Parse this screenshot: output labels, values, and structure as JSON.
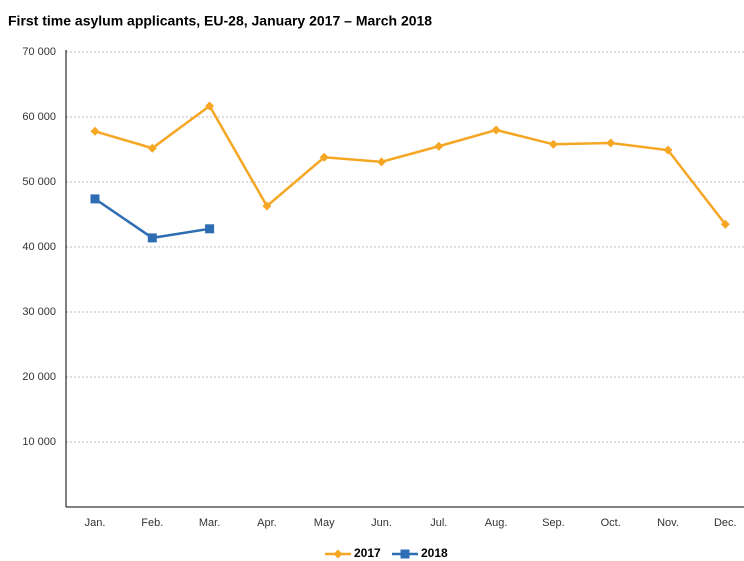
{
  "chart_data": {
    "type": "line",
    "title": "First time asylum applicants, EU-28, January 2017 – March 2018",
    "categories": [
      "Jan.",
      "Feb.",
      "Mar.",
      "Apr.",
      "May",
      "Jun.",
      "Jul.",
      "Aug.",
      "Sep.",
      "Oct.",
      "Nov.",
      "Dec."
    ],
    "series": [
      {
        "name": "2017",
        "color": "#f5a623",
        "marker": "diamond",
        "values": [
          57800,
          55200,
          61700,
          46300,
          53800,
          53100,
          55500,
          58000,
          55800,
          56000,
          54900,
          43500
        ]
      },
      {
        "name": "2018",
        "color": "#2e6db4",
        "marker": "square",
        "values": [
          47400,
          41400,
          42800,
          null,
          null,
          null,
          null,
          null,
          null,
          null,
          null,
          null
        ]
      }
    ],
    "ylim": [
      0,
      70000
    ],
    "yticks": [
      {
        "value": 10000,
        "label": "10 000"
      },
      {
        "value": 20000,
        "label": "20 000"
      },
      {
        "value": 30000,
        "label": "30 000"
      },
      {
        "value": 40000,
        "label": "40 000"
      },
      {
        "value": 50000,
        "label": "50 000"
      },
      {
        "value": 60000,
        "label": "60 000"
      },
      {
        "value": 70000,
        "label": "70 000"
      }
    ],
    "grid": true,
    "legend": "bottom"
  }
}
